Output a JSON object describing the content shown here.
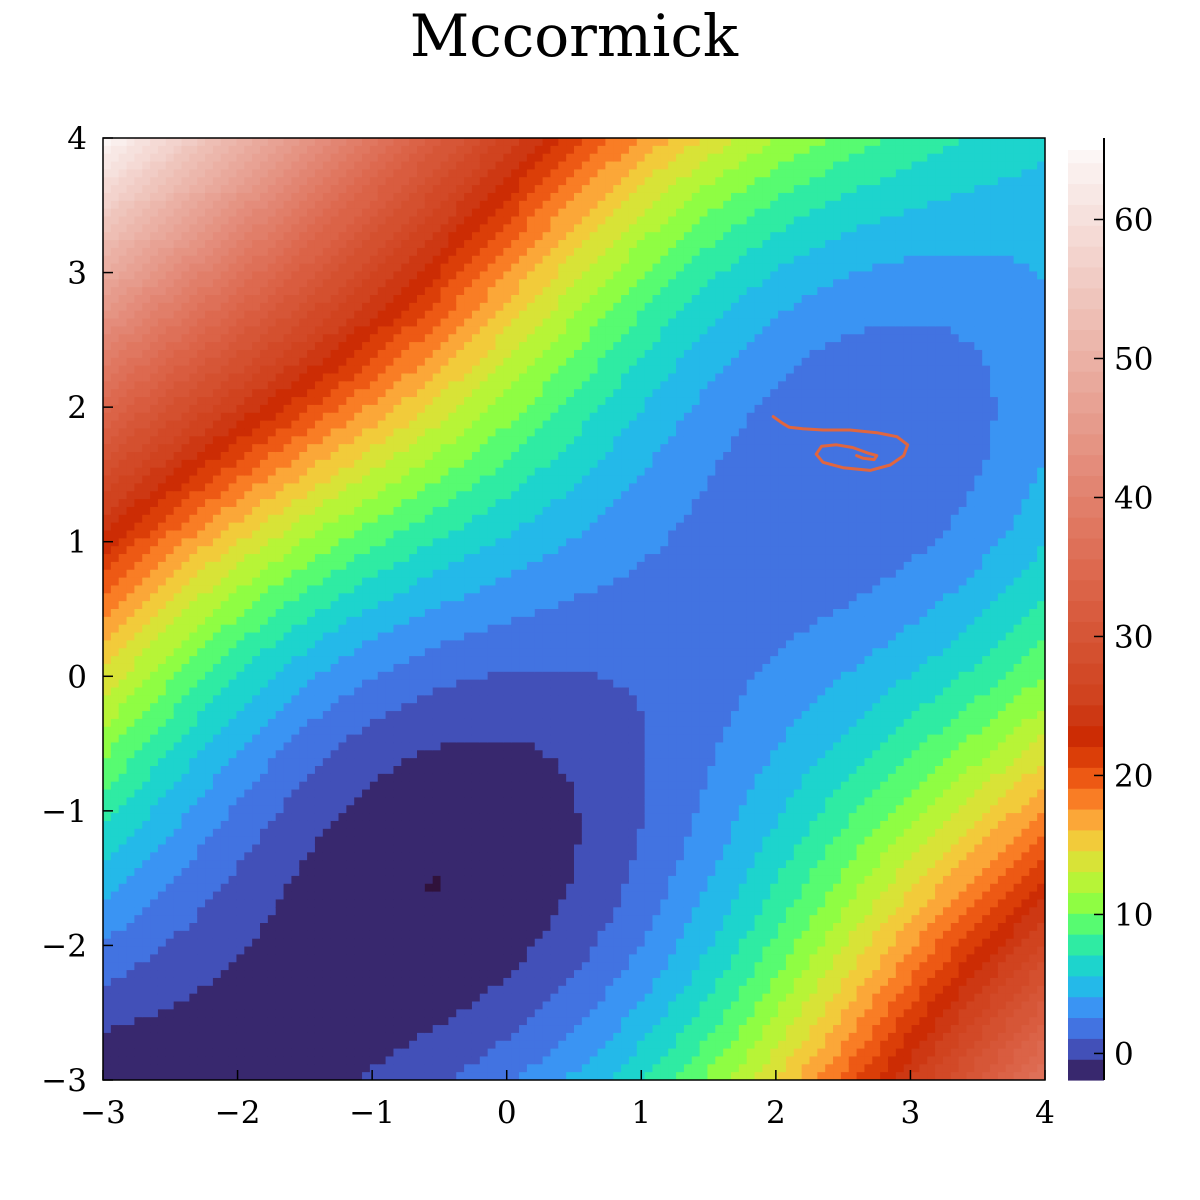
{
  "chart_data": {
    "type": "contour",
    "title": "Mccormick",
    "xlabel": "",
    "ylabel": "",
    "xlim": [
      -3,
      4
    ],
    "ylim": [
      -3,
      4
    ],
    "x_ticks": [
      -3,
      -2,
      -1,
      0,
      1,
      2,
      3,
      4
    ],
    "y_ticks": [
      -3,
      -2,
      -1,
      0,
      1,
      2,
      3,
      4
    ],
    "function": "sin(x + y) + (x - y)^2 - 1.5x + 2.5y + 1",
    "levels_step": 1.5,
    "colorbar": {
      "range": [
        -1.91,
        65
      ],
      "ticks": [
        0,
        10,
        20,
        30,
        40,
        50,
        60
      ],
      "colormap": [
        {
          "v": -2,
          "color": "#30123b"
        },
        {
          "v": -0.5,
          "color": "#3e3a96"
        },
        {
          "v": 1,
          "color": "#4562d2"
        },
        {
          "v": 3,
          "color": "#3f8bf5"
        },
        {
          "v": 5,
          "color": "#22bde8"
        },
        {
          "v": 7,
          "color": "#1be0c0"
        },
        {
          "v": 9,
          "color": "#4afb7b"
        },
        {
          "v": 11,
          "color": "#95fd3e"
        },
        {
          "v": 13,
          "color": "#c7ef34"
        },
        {
          "v": 15,
          "color": "#f0d33a"
        },
        {
          "v": 17,
          "color": "#fca338"
        },
        {
          "v": 19,
          "color": "#f76a1c"
        },
        {
          "v": 21,
          "color": "#de4209"
        },
        {
          "v": 23,
          "color": "#ca2a04"
        },
        {
          "v": 25,
          "color": "#cf3f1a"
        },
        {
          "v": 35,
          "color": "#dd6a50"
        },
        {
          "v": 45,
          "color": "#e6998a"
        },
        {
          "v": 55,
          "color": "#f0c8c0"
        },
        {
          "v": 65,
          "color": "#fcf7f6"
        }
      ]
    },
    "series": [
      {
        "type": "line",
        "color": "#e0663f",
        "x": [
          1.98,
          2.05,
          2.1,
          2.2,
          2.35,
          2.55,
          2.75,
          2.9,
          2.98,
          2.95,
          2.85,
          2.7,
          2.5,
          2.35,
          2.3,
          2.34,
          2.45,
          2.57,
          2.68,
          2.75,
          2.73,
          2.65,
          2.6
        ],
        "y": [
          1.93,
          1.88,
          1.85,
          1.84,
          1.83,
          1.83,
          1.81,
          1.78,
          1.72,
          1.64,
          1.57,
          1.53,
          1.55,
          1.59,
          1.65,
          1.71,
          1.72,
          1.7,
          1.66,
          1.64,
          1.61,
          1.62,
          1.64
        ]
      }
    ]
  }
}
